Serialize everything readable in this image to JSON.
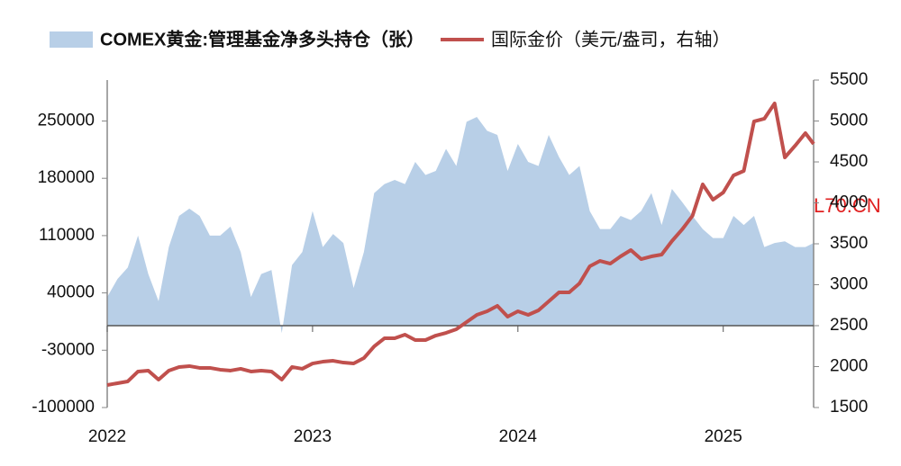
{
  "chart_data": {
    "type": "area_line",
    "series": [
      {
        "name": "COMEX黄金:管理基金净多头持仓（张）",
        "type": "area",
        "color": "#b8cfe7",
        "axis": "y",
        "values": [
          35000,
          57000,
          71000,
          110000,
          63000,
          30000,
          96000,
          134000,
          143000,
          134000,
          110000,
          110000,
          121000,
          90000,
          35000,
          63000,
          68000,
          -9000,
          74000,
          90000,
          140000,
          96000,
          112000,
          101000,
          46000,
          90000,
          162000,
          173000,
          178000,
          173000,
          200000,
          184000,
          189000,
          216000,
          195000,
          249000,
          255000,
          238000,
          233000,
          189000,
          222000,
          200000,
          195000,
          233000,
          206000,
          184000,
          195000,
          140000,
          118000,
          118000,
          134000,
          129000,
          140000,
          162000,
          123000,
          167000,
          151000,
          134000,
          118000,
          107000,
          107000,
          134000,
          123000,
          134000,
          96000,
          101000,
          103000,
          96000,
          96000,
          101000
        ]
      },
      {
        "name": "国际金价（美元/盎司，右轴）",
        "type": "line",
        "color": "#c0504d",
        "axis": "y2",
        "values": [
          1775,
          1797,
          1819,
          1940,
          1951,
          1841,
          1951,
          1995,
          2006,
          1984,
          1984,
          1962,
          1951,
          1973,
          1940,
          1951,
          1940,
          1841,
          1995,
          1973,
          2038,
          2060,
          2071,
          2049,
          2038,
          2104,
          2247,
          2346,
          2346,
          2390,
          2324,
          2324,
          2379,
          2412,
          2456,
          2544,
          2632,
          2676,
          2742,
          2610,
          2676,
          2632,
          2687,
          2797,
          2907,
          2907,
          3017,
          3225,
          3291,
          3258,
          3346,
          3423,
          3313,
          3346,
          3368,
          3533,
          3676,
          3841,
          4226,
          4039,
          4127,
          4335,
          4390,
          4995,
          5028,
          5215,
          4555,
          4698,
          4852,
          4720
        ]
      }
    ],
    "x": [
      2022,
      2022.05,
      2022.1,
      2022.15,
      2022.2,
      2022.25,
      2022.3,
      2022.35,
      2022.4,
      2022.45,
      2022.5,
      2022.55,
      2022.6,
      2022.65,
      2022.7,
      2022.75,
      2022.8,
      2022.85,
      2022.9,
      2022.95,
      2023,
      2023.05,
      2023.1,
      2023.15,
      2023.2,
      2023.25,
      2023.3,
      2023.35,
      2023.4,
      2023.45,
      2023.5,
      2023.55,
      2023.6,
      2023.65,
      2023.7,
      2023.75,
      2023.8,
      2023.85,
      2023.9,
      2023.95,
      2024,
      2024.05,
      2024.1,
      2024.15,
      2024.2,
      2024.25,
      2024.3,
      2024.35,
      2024.4,
      2024.45,
      2024.5,
      2024.55,
      2024.6,
      2024.65,
      2024.7,
      2024.75,
      2024.8,
      2024.85,
      2024.9,
      2024.95,
      2025,
      2025.05,
      2025.1,
      2025.15,
      2025.2,
      2025.25,
      2025.3,
      2025.35,
      2025.4,
      2025.44
    ],
    "xlim": [
      2022,
      2025.44
    ],
    "xticks": [
      2022,
      2023,
      2024,
      2025
    ],
    "ylim": [
      -100000,
      300000
    ],
    "yticks": [
      -100000,
      -30000,
      40000,
      110000,
      180000,
      250000
    ],
    "y2lim": [
      1500,
      5500
    ],
    "y2ticks": [
      1500,
      2000,
      2500,
      3000,
      3500,
      4000,
      4500,
      5000,
      5500
    ],
    "annotation": "L70.CN"
  }
}
